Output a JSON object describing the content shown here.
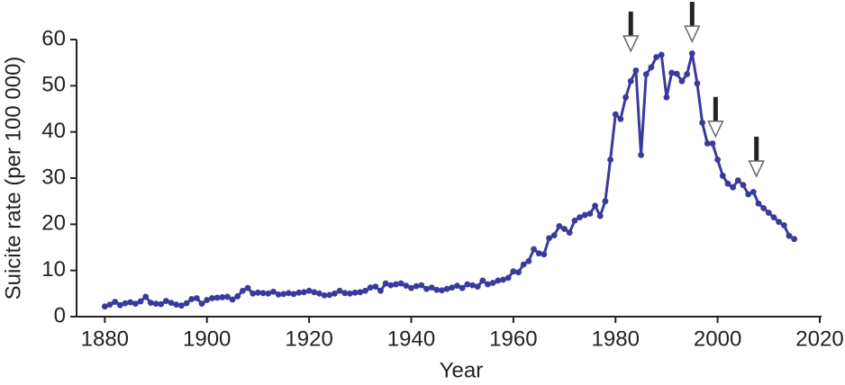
{
  "chart_data": {
    "type": "line",
    "xlabel": "Year",
    "ylabel": "Suicite rate (per 100 000)",
    "x": [
      1880,
      1881,
      1882,
      1883,
      1884,
      1885,
      1886,
      1887,
      1888,
      1889,
      1890,
      1891,
      1892,
      1893,
      1894,
      1895,
      1896,
      1897,
      1898,
      1899,
      1900,
      1901,
      1902,
      1903,
      1904,
      1905,
      1906,
      1907,
      1908,
      1909,
      1910,
      1911,
      1912,
      1913,
      1914,
      1915,
      1916,
      1917,
      1918,
      1919,
      1920,
      1921,
      1922,
      1923,
      1924,
      1925,
      1926,
      1927,
      1928,
      1929,
      1930,
      1931,
      1932,
      1933,
      1934,
      1935,
      1936,
      1937,
      1938,
      1939,
      1940,
      1941,
      1942,
      1943,
      1944,
      1945,
      1946,
      1947,
      1948,
      1949,
      1950,
      1951,
      1952,
      1953,
      1954,
      1955,
      1956,
      1957,
      1958,
      1959,
      1960,
      1961,
      1962,
      1963,
      1964,
      1965,
      1966,
      1967,
      1968,
      1969,
      1970,
      1971,
      1972,
      1973,
      1974,
      1975,
      1976,
      1977,
      1978,
      1979,
      1980,
      1981,
      1982,
      1983,
      1984,
      1985,
      1986,
      1987,
      1988,
      1989,
      1990,
      1991,
      1992,
      1993,
      1994,
      1995,
      1996,
      1997,
      1998,
      1999,
      2000,
      2001,
      2002,
      2003,
      2004,
      2005,
      2006,
      2007,
      2008,
      2009,
      2010,
      2011,
      2012,
      2013,
      2014,
      2015
    ],
    "series": [
      {
        "color": "#3a3a9e",
        "values": [
          2.2,
          2.6,
          3.2,
          2.5,
          2.9,
          3.1,
          2.8,
          3.3,
          4.3,
          3.0,
          2.8,
          2.7,
          3.4,
          3.0,
          2.6,
          2.4,
          2.9,
          3.8,
          4.0,
          2.8,
          3.6,
          4.0,
          4.1,
          4.2,
          4.3,
          3.7,
          4.4,
          5.6,
          6.2,
          5.0,
          5.2,
          5.1,
          5.0,
          5.4,
          4.8,
          4.9,
          5.1,
          4.9,
          5.2,
          5.3,
          5.6,
          5.3,
          5.0,
          4.6,
          4.7,
          5.0,
          5.6,
          5.1,
          5.0,
          5.2,
          5.3,
          5.6,
          6.3,
          6.5,
          5.6,
          7.2,
          6.8,
          7.0,
          7.2,
          6.7,
          6.2,
          6.6,
          6.8,
          6.0,
          6.3,
          5.8,
          5.7,
          6.0,
          6.3,
          6.7,
          6.2,
          7.0,
          6.8,
          6.5,
          7.8,
          7.0,
          7.3,
          7.8,
          8.0,
          8.4,
          9.8,
          9.6,
          11.3,
          12.0,
          14.6,
          13.7,
          13.5,
          17.0,
          17.6,
          19.6,
          19.0,
          18.2,
          20.8,
          21.5,
          22.0,
          22.3,
          24.0,
          21.8,
          25.0,
          34.0,
          43.8,
          42.8,
          47.5,
          51.0,
          53.3,
          35.0,
          52.5,
          54.0,
          56.2,
          56.7,
          47.5,
          52.8,
          52.6,
          51.0,
          52.5,
          57.0,
          50.5,
          42.0,
          37.5,
          37.5,
          34.0,
          30.5,
          28.8,
          28.0,
          29.5,
          28.5,
          26.5,
          27.0,
          24.5,
          23.5,
          22.5,
          21.5,
          20.5,
          19.8,
          17.5,
          16.8
        ]
      }
    ],
    "arrows": [
      {
        "x": 1983,
        "y": 57.5
      },
      {
        "x": 1995,
        "y": 59.6
      },
      {
        "x": 1999.6,
        "y": 39
      },
      {
        "x": 2007.6,
        "y": 30.4
      }
    ],
    "xlim": [
      1875,
      2020
    ],
    "xticks": [
      1880,
      1900,
      1920,
      1940,
      1960,
      1980,
      2000,
      2020
    ],
    "ylim": [
      0,
      60
    ],
    "yticks": [
      0,
      10,
      20,
      30,
      40,
      50,
      60
    ]
  }
}
